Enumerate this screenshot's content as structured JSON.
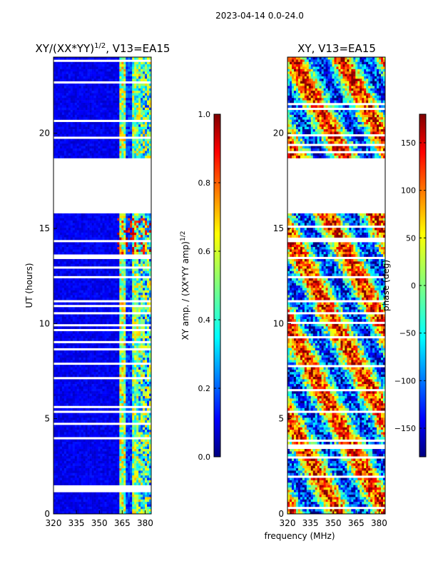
{
  "suptitle": "2023-04-14 0.0-24.0",
  "chart_data": [
    {
      "type": "heatmap",
      "panel": "left",
      "title": "XY/(XX*YY)",
      "title_exponent": "1/2",
      "title_suffix": ", V13=EA15",
      "xlabel": "",
      "ylabel": "UT (hours)",
      "x_ticks": [
        "320",
        "335",
        "350",
        "365",
        "380"
      ],
      "x_tick_values": [
        320,
        335,
        350,
        365,
        380
      ],
      "y_ticks": [
        "0",
        "5",
        "10",
        "15",
        "20"
      ],
      "y_tick_values": [
        0,
        5,
        10,
        15,
        20
      ],
      "xlim": [
        320,
        384
      ],
      "ylim": [
        0,
        24
      ],
      "data_gap_hours": [
        18.7,
        15.8
      ],
      "colorbar": {
        "label": "XY amp. / (XX*YY amp)",
        "label_exponent": "1/2",
        "ticks": [
          "0.0",
          "0.2",
          "0.4",
          "0.6",
          "0.8",
          "1.0"
        ],
        "tick_values": [
          0.0,
          0.2,
          0.4,
          0.6,
          0.8,
          1.0
        ],
        "range": [
          0.0,
          1.0
        ],
        "colormap": "jet"
      }
    },
    {
      "type": "heatmap",
      "panel": "right",
      "title": "XY, V13=EA15",
      "xlabel": "frequency (MHz)",
      "ylabel": "",
      "x_ticks": [
        "320",
        "335",
        "350",
        "365",
        "380"
      ],
      "x_tick_values": [
        320,
        335,
        350,
        365,
        380
      ],
      "y_ticks": [
        "0",
        "5",
        "10",
        "15",
        "20"
      ],
      "y_tick_values": [
        0,
        5,
        10,
        15,
        20
      ],
      "xlim": [
        320,
        384
      ],
      "ylim": [
        0,
        24
      ],
      "data_gap_hours": [
        18.7,
        15.8
      ],
      "colorbar": {
        "label": "phase (deg)",
        "ticks": [
          "−150",
          "−100",
          "−50",
          "0",
          "50",
          "100",
          "150"
        ],
        "tick_values": [
          -150,
          -100,
          -50,
          0,
          50,
          100,
          150
        ],
        "range": [
          -180,
          180
        ],
        "colormap": "jet"
      }
    }
  ]
}
